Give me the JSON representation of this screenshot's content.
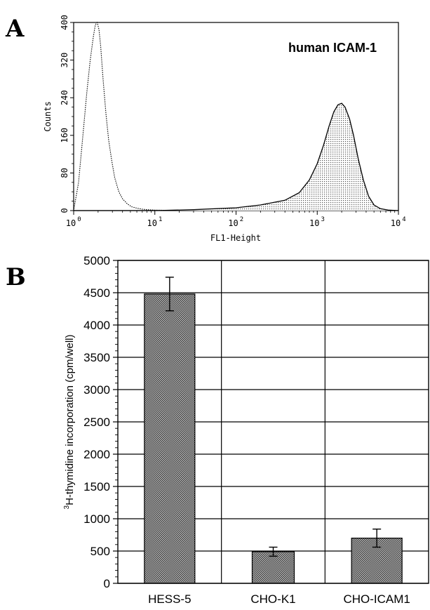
{
  "chart_data": [
    {
      "panel": "A",
      "type": "area",
      "annotation": "human ICAM-1",
      "xlabel": "FL1-Height",
      "ylabel": "Counts",
      "xscale": "log",
      "xlim": [
        1,
        10000
      ],
      "ylim": [
        0,
        400
      ],
      "x_ticks": [
        {
          "base": "10",
          "exp": "0",
          "value": 1
        },
        {
          "base": "10",
          "exp": "1",
          "value": 10
        },
        {
          "base": "10",
          "exp": "2",
          "value": 100
        },
        {
          "base": "10",
          "exp": "3",
          "value": 1000
        },
        {
          "base": "10",
          "exp": "4",
          "value": 10000
        }
      ],
      "y_ticks": [
        "0",
        "80",
        "160",
        "240",
        "320",
        "400"
      ],
      "series": [
        {
          "role": "control (dotted outline)",
          "fill": "none",
          "x": [
            1.0,
            1.15,
            1.3,
            1.45,
            1.6,
            1.75,
            1.85,
            1.95,
            2.05,
            2.15,
            2.3,
            2.5,
            2.7,
            2.95,
            3.2,
            3.6,
            4.0,
            4.6,
            5.2,
            6.0,
            7.0,
            8.0,
            10.0,
            20.0,
            100.0,
            1000.0,
            10000.0
          ],
          "y": [
            0,
            60,
            160,
            250,
            320,
            370,
            395,
            400,
            385,
            350,
            280,
            205,
            150,
            105,
            70,
            40,
            25,
            14,
            8,
            5,
            3,
            2,
            1,
            0,
            0,
            0,
            0
          ]
        },
        {
          "role": "human ICAM-1 (shaded)",
          "fill": "dotted",
          "x": [
            1.0,
            10.0,
            30.0,
            100.0,
            200.0,
            400.0,
            600.0,
            800.0,
            1000.0,
            1200.0,
            1400.0,
            1600.0,
            1800.0,
            2000.0,
            2200.0,
            2500.0,
            2800.0,
            3200.0,
            3700.0,
            4300.0,
            5000.0,
            6000.0,
            7500.0,
            10000.0
          ],
          "y": [
            0,
            0,
            2,
            6,
            12,
            22,
            38,
            65,
            100,
            140,
            180,
            210,
            225,
            228,
            220,
            195,
            160,
            110,
            65,
            30,
            12,
            4,
            1,
            0
          ]
        }
      ]
    },
    {
      "panel": "B",
      "type": "bar",
      "ylabel_prefix": "3",
      "ylabel": "H-thymidine incorporation (cpm/well)",
      "ylim": [
        0,
        5000
      ],
      "y_ticks": [
        "0",
        "500",
        "1000",
        "1500",
        "2000",
        "2500",
        "3000",
        "3500",
        "4000",
        "4500",
        "5000"
      ],
      "categories": [
        "HESS-5",
        "CHO-K1",
        "CHO-ICAM1"
      ],
      "values": [
        4480,
        490,
        700
      ],
      "errors": [
        260,
        70,
        140
      ],
      "grid": true
    }
  ],
  "panel_labels": [
    "A",
    "B"
  ]
}
